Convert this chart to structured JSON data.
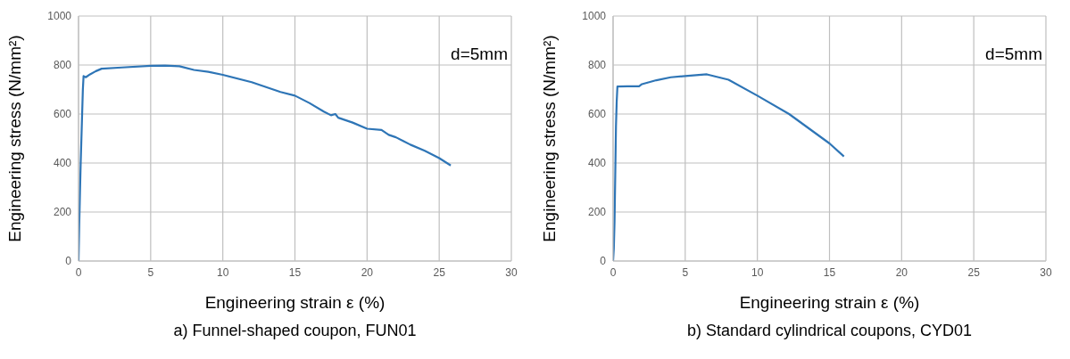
{
  "chart_data": [
    {
      "type": "line",
      "title": "a) Funnel-shaped coupon, FUN01",
      "xlabel": "Engineering strain ε (%)",
      "ylabel": "Engineering stress (N/mm²)",
      "annotations": [
        "d=5mm"
      ],
      "series": [
        {
          "color": "#2e75b6",
          "x": [
            0,
            0.05,
            0.1,
            0.15,
            0.2,
            0.25,
            0.3,
            0.35,
            0.5,
            0.8,
            1.2,
            1.6,
            3,
            5,
            6,
            7,
            8,
            9,
            10,
            12,
            13,
            14,
            15,
            16,
            17,
            17.5,
            17.8,
            18,
            19,
            20,
            21,
            21.5,
            22,
            22.5,
            23,
            24,
            25,
            25.8
          ],
          "values": [
            0,
            150,
            280,
            400,
            500,
            600,
            700,
            755,
            750,
            762,
            775,
            785,
            790,
            797,
            798,
            795,
            780,
            772,
            760,
            730,
            710,
            690,
            675,
            645,
            610,
            595,
            600,
            585,
            565,
            540,
            535,
            515,
            505,
            490,
            475,
            450,
            420,
            390
          ]
        }
      ],
      "xlim": [
        0,
        30
      ],
      "xticks": [
        0,
        5,
        10,
        15,
        20,
        25,
        30
      ],
      "ylim": [
        0,
        1000
      ],
      "yticks": [
        0,
        200,
        400,
        600,
        800,
        1000
      ],
      "grid": true,
      "marker": "none",
      "line_style": "solid"
    },
    {
      "type": "line",
      "title": "b) Standard cylindrical coupons, CYD01",
      "xlabel": "Engineering strain ε (%)",
      "ylabel": "Engineering stress (N/mm²)",
      "annotations": [
        "d=5mm"
      ],
      "series": [
        {
          "color": "#2e75b6",
          "x": [
            0,
            0.05,
            0.1,
            0.15,
            0.2,
            0.25,
            0.3,
            1,
            1.8,
            2,
            3,
            4,
            5,
            6.5,
            8,
            10,
            12.2,
            15,
            16
          ],
          "values": [
            0,
            50,
            160,
            350,
            550,
            650,
            712,
            713,
            713,
            722,
            738,
            750,
            755,
            762,
            740,
            675,
            600,
            480,
            427
          ]
        }
      ],
      "xlim": [
        0,
        30
      ],
      "xticks": [
        0,
        5,
        10,
        15,
        20,
        25,
        30
      ],
      "ylim": [
        0,
        1000
      ],
      "yticks": [
        0,
        200,
        400,
        600,
        800,
        1000
      ],
      "grid": true,
      "marker": "none",
      "line_style": "solid"
    }
  ]
}
